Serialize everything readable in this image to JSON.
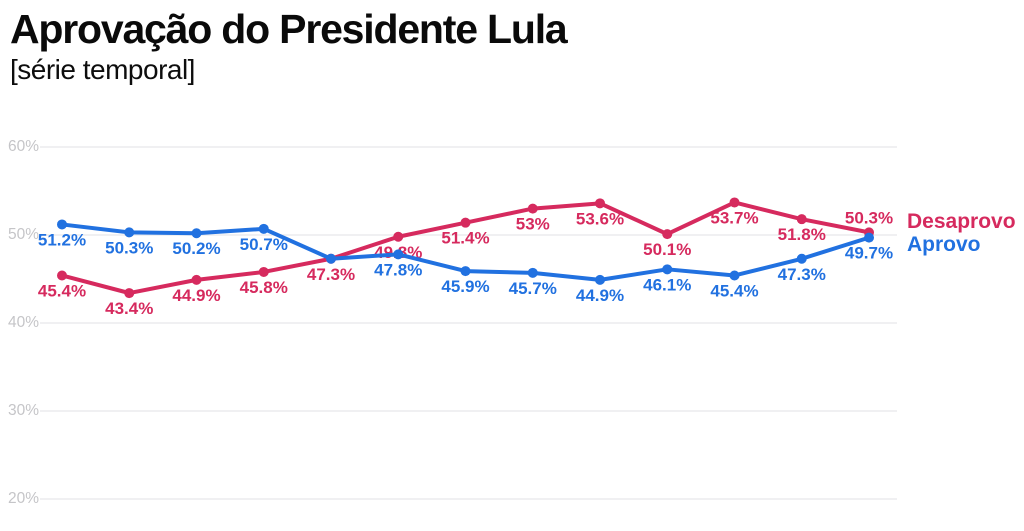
{
  "header": {
    "title": "Aprovação do Presidente Lula",
    "subtitle": "[série temporal]"
  },
  "chart_data": {
    "type": "line",
    "title": "Aprovação do Presidente Lula",
    "subtitle": "[série temporal]",
    "x_count": 13,
    "series": [
      {
        "name": "Desaprovo",
        "color": "#d62a5e",
        "values": [
          45.4,
          43.4,
          44.9,
          45.8,
          47.3,
          49.8,
          51.4,
          53,
          53.6,
          50.1,
          53.7,
          51.8,
          50.3
        ],
        "labels": [
          "45.4%",
          "43.4%",
          "44.9%",
          "45.8%",
          "47.3%",
          "49.8%",
          "51.4%",
          "53%",
          "53.6%",
          "50.1%",
          "53.7%",
          "51.8%",
          "50.3%"
        ],
        "last_label_position": "above"
      },
      {
        "name": "Aprovo",
        "color": "#2171e0",
        "values": [
          51.2,
          50.3,
          50.2,
          50.7,
          47.3,
          47.8,
          45.9,
          45.7,
          44.9,
          46.1,
          45.4,
          47.3,
          49.7
        ],
        "labels": [
          "51.2%",
          "50.3%",
          "50.2%",
          "50.7%",
          null,
          "47.8%",
          "45.9%",
          "45.7%",
          "44.9%",
          "46.1%",
          "45.4%",
          "47.3%",
          "49.7%"
        ],
        "last_label_position": "below"
      }
    ],
    "yticks": [
      {
        "label": "60%",
        "value": 60
      },
      {
        "label": "50%",
        "value": 50
      },
      {
        "label": "40%",
        "value": 40
      },
      {
        "label": "30%",
        "value": 30
      },
      {
        "label": "20%",
        "value": 20
      }
    ],
    "ylim": [
      17,
      63
    ],
    "grid": true,
    "legend_position": "right",
    "colors": {
      "grid": "#ececee",
      "tick_text": "#c5c5c8",
      "background": "#ffffff"
    }
  }
}
